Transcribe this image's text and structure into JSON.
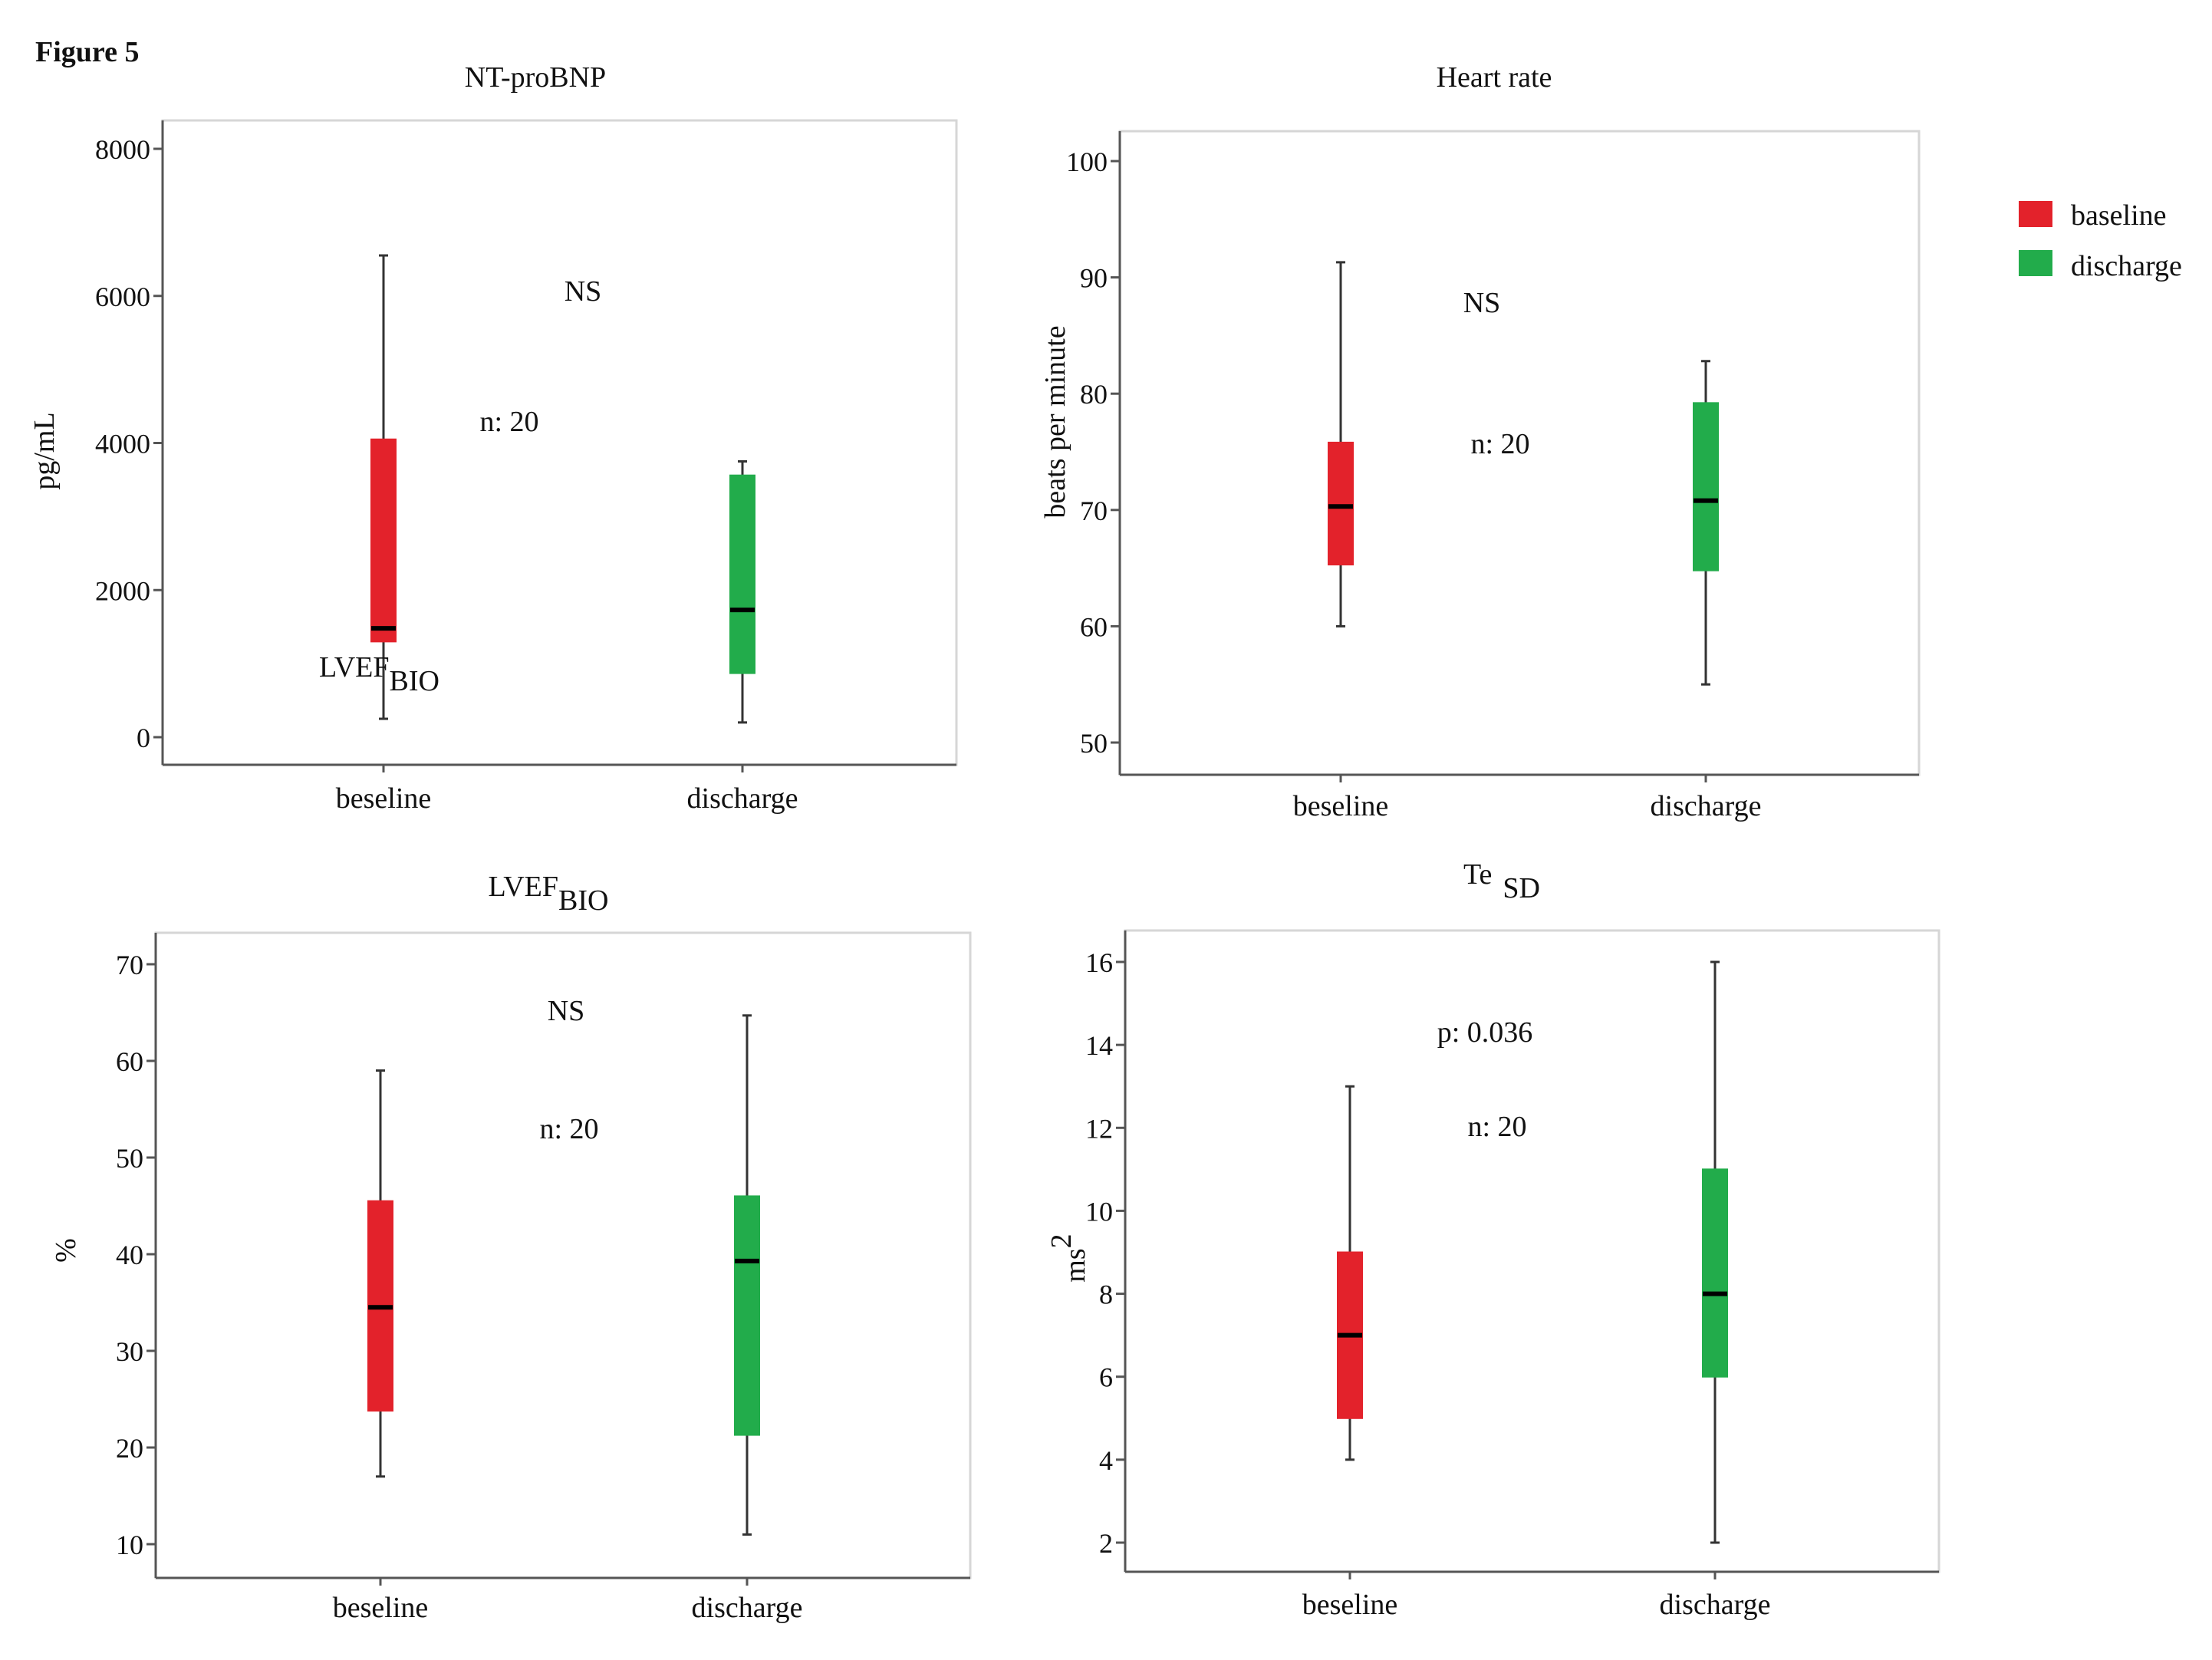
{
  "figure_label": "Figure 5",
  "colors": {
    "baseline": "#e3222b",
    "discharge": "#22ac4b"
  },
  "legend": {
    "items": [
      {
        "label": "baseline",
        "color": "#e3222b"
      },
      {
        "label": "discharge",
        "color": "#22ac4b"
      }
    ]
  },
  "chart_data": [
    {
      "type": "box",
      "title": "NT-proBNP",
      "title_main": "NT-proBNP",
      "title_sub": "",
      "ylabel": "pg/mL",
      "ylabel_sup": "",
      "categories": [
        "beseline",
        "discharge"
      ],
      "ylim": [
        0,
        8000
      ],
      "yticks": [
        0,
        2000,
        4000,
        6000,
        8000
      ],
      "boxes": [
        {
          "group": "baseline",
          "min": 250,
          "q1": 1300,
          "median": 1480,
          "q3": 4050,
          "max": 6550
        },
        {
          "group": "discharge",
          "min": 200,
          "q1": 870,
          "median": 1730,
          "q3": 3560,
          "max": 3750
        }
      ],
      "annotations": {
        "test": "NS",
        "n": "n: 20"
      },
      "extra_label": {
        "main": "LVEF",
        "sub": "BIO"
      }
    },
    {
      "type": "box",
      "title": "Heart rate",
      "title_main": "Heart rate",
      "title_sub": "",
      "ylabel": "beats per minute",
      "ylabel_sup": "",
      "categories": [
        "beseline",
        "discharge"
      ],
      "ylim": [
        50,
        100
      ],
      "yticks": [
        50,
        60,
        70,
        80,
        90,
        100
      ],
      "boxes": [
        {
          "group": "baseline",
          "min": 60,
          "q1": 65.3,
          "median": 70.3,
          "q3": 75.8,
          "max": 91.3
        },
        {
          "group": "discharge",
          "min": 55,
          "q1": 64.8,
          "median": 70.8,
          "q3": 79.2,
          "max": 82.8
        }
      ],
      "annotations": {
        "test": "NS",
        "n": "n: 20"
      }
    },
    {
      "type": "box",
      "title": "LVEFBIO",
      "title_main": "LVEF",
      "title_sub": "BIO",
      "ylabel": "%",
      "ylabel_sup": "",
      "categories": [
        "beseline",
        "discharge"
      ],
      "ylim": [
        10,
        70
      ],
      "yticks": [
        10,
        20,
        30,
        40,
        50,
        60,
        70
      ],
      "boxes": [
        {
          "group": "baseline",
          "min": 17,
          "q1": 23.8,
          "median": 34.5,
          "q3": 45.5,
          "max": 59
        },
        {
          "group": "discharge",
          "min": 11,
          "q1": 21.3,
          "median": 39.3,
          "q3": 46,
          "max": 64.7
        }
      ],
      "annotations": {
        "test": "NS",
        "n": "n: 20"
      }
    },
    {
      "type": "box",
      "title": "Te SD",
      "title_main": "Te",
      "title_sub": "SD",
      "ylabel": "ms",
      "ylabel_sup": "2",
      "categories": [
        "beseline",
        "discharge"
      ],
      "ylim": [
        2,
        16
      ],
      "yticks": [
        2,
        4,
        6,
        8,
        10,
        12,
        14,
        16
      ],
      "boxes": [
        {
          "group": "baseline",
          "min": 4,
          "q1": 5,
          "median": 7,
          "q3": 9,
          "max": 13
        },
        {
          "group": "discharge",
          "min": 2,
          "q1": 6,
          "median": 8,
          "q3": 11,
          "max": 16
        }
      ],
      "annotations": {
        "test": "p: 0.036",
        "n": "n: 20"
      }
    }
  ]
}
